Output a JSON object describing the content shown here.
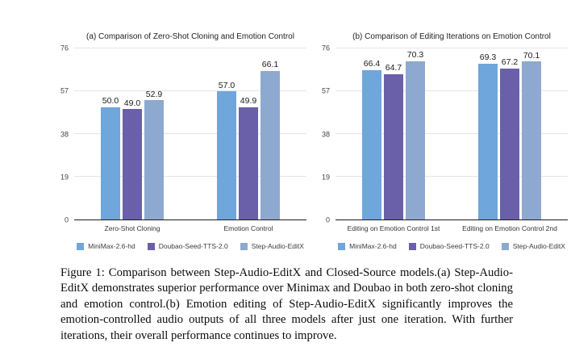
{
  "chart_data": [
    {
      "type": "bar",
      "title": "(a) Comparison of Zero-Shot Cloning and Emotion Control",
      "categories": [
        "Zero-Shot Cloning",
        "Emotion Control"
      ],
      "series": [
        {
          "name": "MiniMax-2.6-hd",
          "color": "#6fa6db",
          "values": [
            50.0,
            57.0
          ]
        },
        {
          "name": "Doubao-Seed-TTS-2.0",
          "color": "#6a60a9",
          "values": [
            49.0,
            49.9
          ]
        },
        {
          "name": "Step-Audio-EditX",
          "color": "#8ea9cf",
          "values": [
            52.9,
            66.1
          ]
        }
      ],
      "ylim": [
        0,
        76
      ],
      "y_ticks": [
        0,
        19,
        38,
        57,
        76
      ],
      "grid": true,
      "legend_position": "bottom",
      "value_label_decimals": 1
    },
    {
      "type": "bar",
      "title": "(b) Comparison of Editing Iterations on Emotion Control",
      "categories": [
        "Editing on Emotion Control 1st",
        "Editing on Emotion Control 2nd"
      ],
      "series": [
        {
          "name": "MiniMax-2.6-hd",
          "color": "#6fa6db",
          "values": [
            66.4,
            69.3
          ]
        },
        {
          "name": "Doubao-Seed-TTS-2.0",
          "color": "#6a60a9",
          "values": [
            64.7,
            67.2
          ]
        },
        {
          "name": "Step-Audio-EditX",
          "color": "#8ea9cf",
          "values": [
            70.3,
            70.1
          ]
        }
      ],
      "ylim": [
        0,
        76
      ],
      "y_ticks": [
        0,
        19,
        38,
        57,
        76
      ],
      "grid": true,
      "legend_position": "bottom",
      "value_label_decimals": 1
    }
  ],
  "caption": {
    "text": "Figure 1: Comparison between Step-Audio-EditX and Closed-Source models.(a) Step-Audio-EditX demonstrates superior performance over Minimax and Doubao in both zero-shot cloning and emotion control.(b) Emotion editing of Step-Audio-EditX significantly improves the emotion-controlled audio outputs of all three models after just one iteration. With further iterations, their overall performance continues to improve."
  },
  "colors": {
    "gridline": "#e4e5e9",
    "axis_line": "#1c1c1c",
    "background": "#ffffff"
  }
}
